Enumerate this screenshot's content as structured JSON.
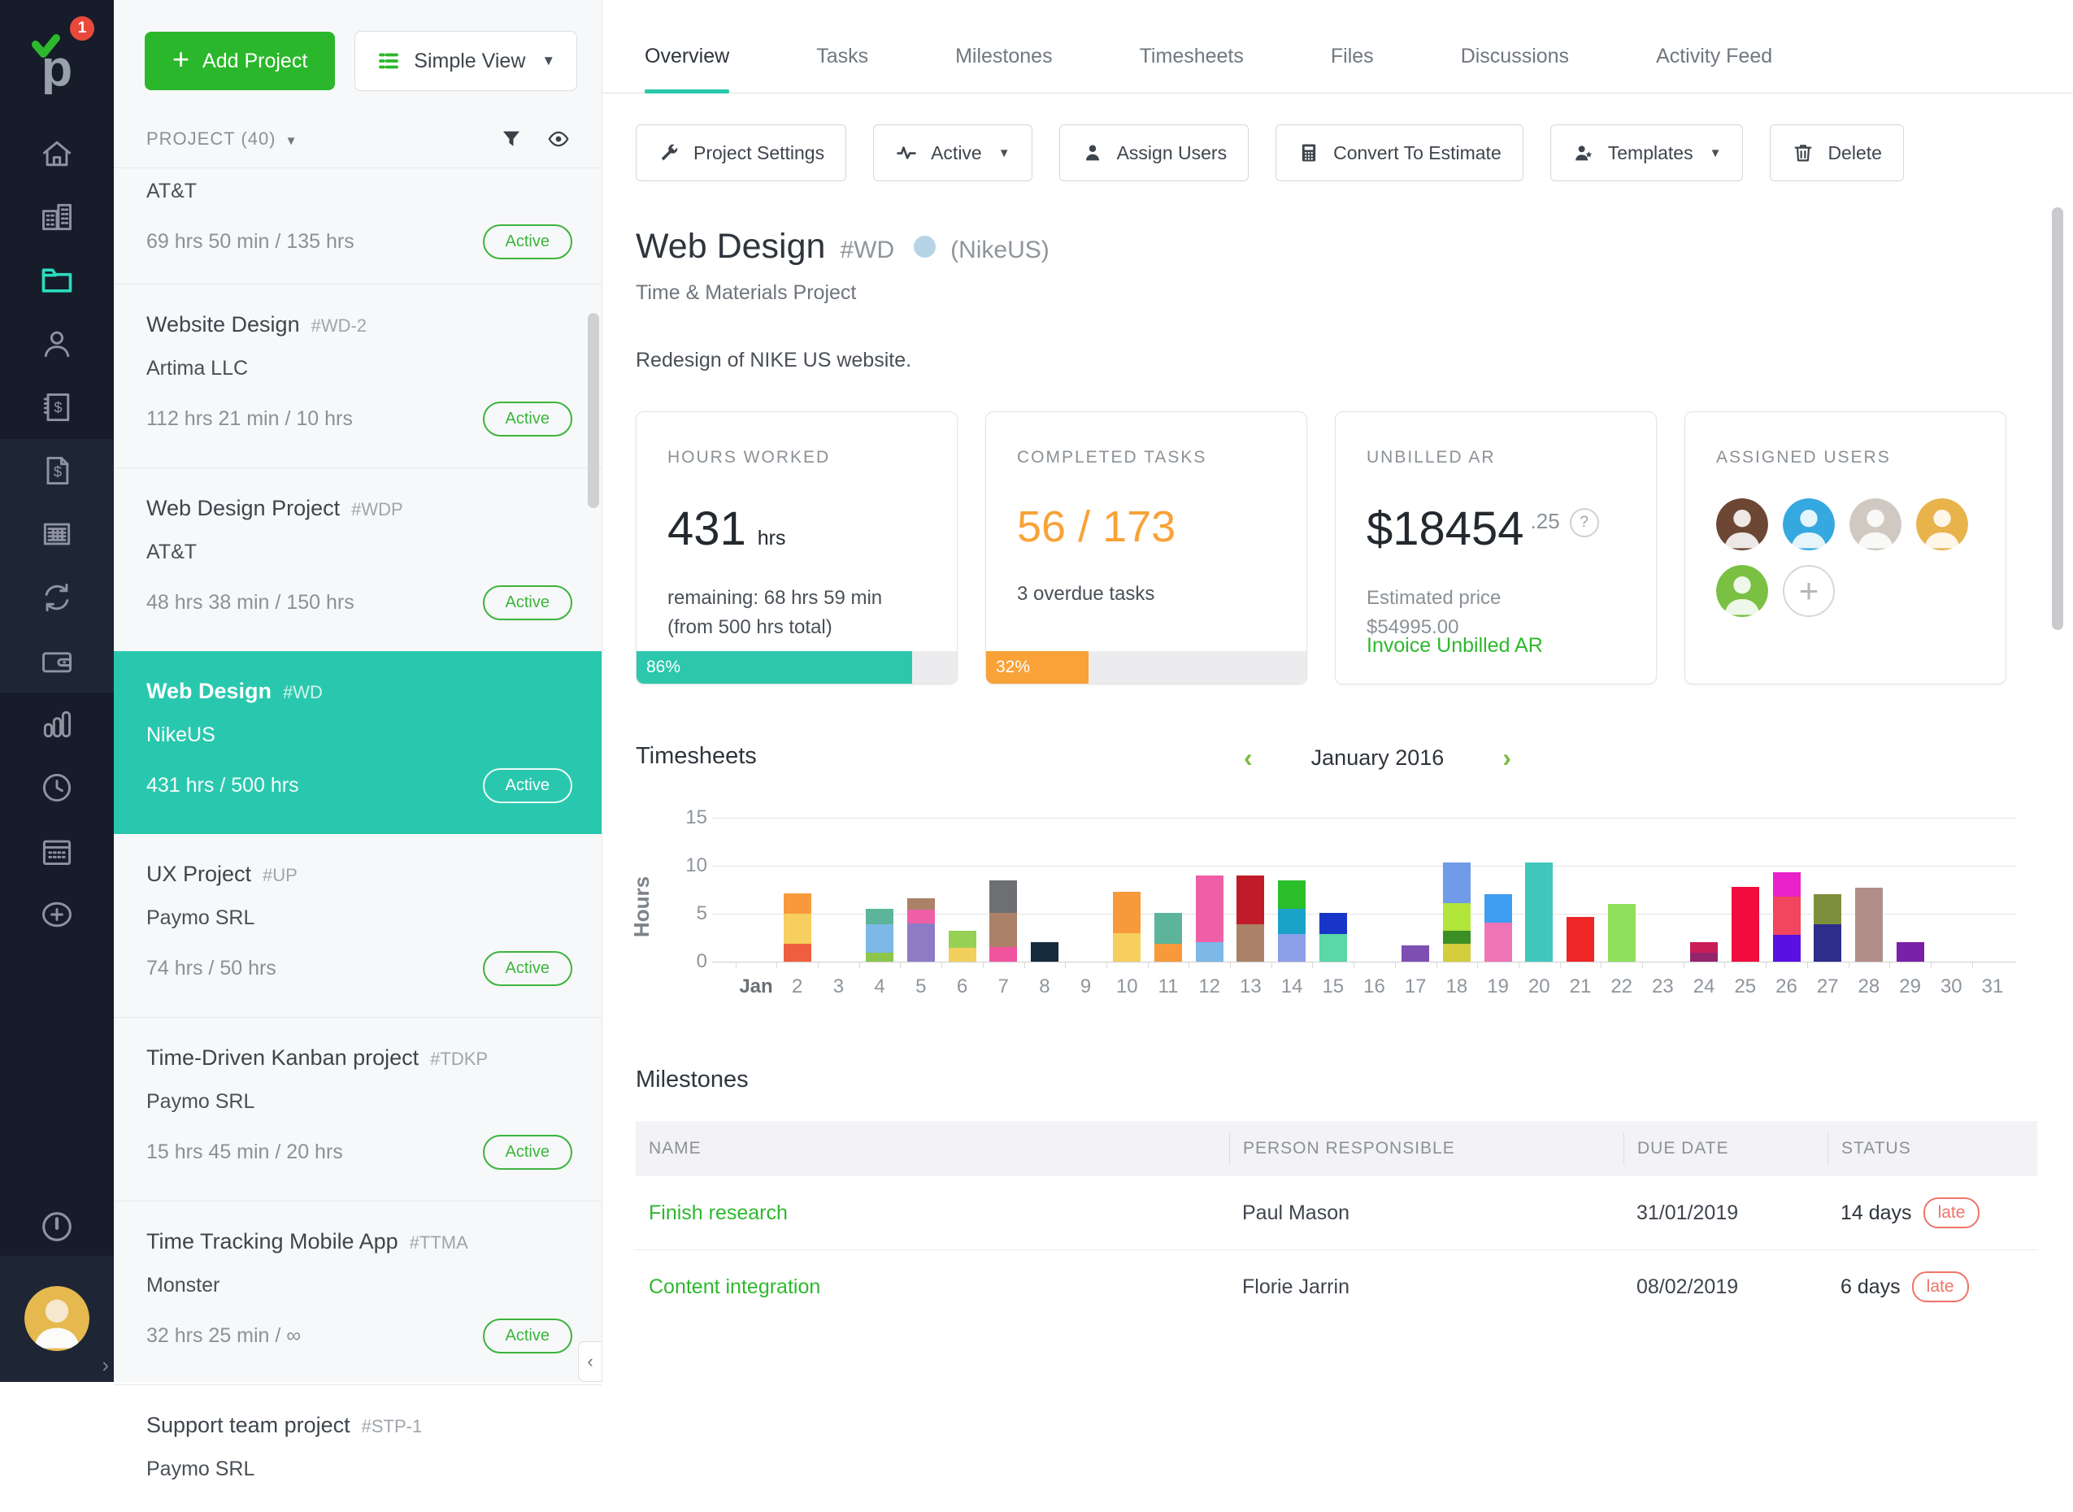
{
  "nav_rail": {
    "badge": "1",
    "items": [
      {
        "icon": "home"
      },
      {
        "icon": "clients"
      },
      {
        "icon": "projects",
        "active": true
      },
      {
        "icon": "users"
      },
      {
        "icon": "invoices"
      },
      {
        "icon": "estimates"
      },
      {
        "icon": "expenses"
      },
      {
        "icon": "recurring"
      },
      {
        "icon": "wallet"
      },
      {
        "icon": "reports"
      },
      {
        "icon": "time"
      },
      {
        "icon": "calendar"
      },
      {
        "icon": "add"
      }
    ],
    "alert_icon": "alert-clock",
    "expand_icon": "chevron-right"
  },
  "project_panel": {
    "add_project_label": "Add Project",
    "view_selector": "Simple View",
    "list_header": "PROJECT (40)",
    "projects": [
      {
        "name": "",
        "code": "",
        "client": "AT&T",
        "hours": "69 hrs 50 min / 135 hrs",
        "status": "Active",
        "clipped": true
      },
      {
        "name": "Website Design",
        "code": "#WD-2",
        "client": "Artima LLC",
        "hours": "112 hrs 21 min / 10 hrs",
        "status": "Active"
      },
      {
        "name": "Web Design Project",
        "code": "#WDP",
        "client": "AT&T",
        "hours": "48 hrs 38 min / 150 hrs",
        "status": "Active"
      },
      {
        "name": "Web Design",
        "code": "#WD",
        "client": "NikeUS",
        "hours": "431 hrs / 500 hrs",
        "status": "Active",
        "selected": true
      },
      {
        "name": "UX Project",
        "code": "#UP",
        "client": "Paymo SRL",
        "hours": "74 hrs / 50 hrs",
        "status": "Active"
      },
      {
        "name": "Time-Driven Kanban project",
        "code": "#TDKP",
        "client": "Paymo SRL",
        "hours": "15 hrs 45 min / 20 hrs",
        "status": "Active"
      },
      {
        "name": "Time Tracking Mobile App",
        "code": "#TTMA",
        "client": "Monster",
        "hours": "32 hrs 25 min / ∞",
        "status": "Active"
      },
      {
        "name": "Support team project",
        "code": "#STP-1",
        "client": "Paymo SRL",
        "hours": "",
        "status": ""
      }
    ]
  },
  "tabs": {
    "active": "Overview",
    "items": [
      "Overview",
      "Tasks",
      "Milestones",
      "Timesheets",
      "Files",
      "Discussions",
      "Activity Feed"
    ]
  },
  "toolbar": [
    {
      "label": "Project Settings",
      "icon": "wrench"
    },
    {
      "label": "Active",
      "icon": "pulse",
      "caret": true
    },
    {
      "label": "Assign Users",
      "icon": "person"
    },
    {
      "label": "Convert To Estimate",
      "icon": "calculator"
    },
    {
      "label": "Templates",
      "icon": "templates",
      "caret": true
    },
    {
      "label": "Delete",
      "icon": "trash"
    }
  ],
  "project_header": {
    "title": "Web Design",
    "code": "#WD",
    "client_paren": "(NikeUS)",
    "type": "Time & Materials Project",
    "description": "Redesign of NIKE US website."
  },
  "cards": {
    "hours_worked": {
      "label": "HOURS WORKED",
      "value": "431",
      "unit": "hrs",
      "line1": "remaining: 68 hrs 59 min",
      "line2": "(from 500 hrs total)",
      "percent": 86,
      "percent_label": "86%",
      "color": "#2cc7ac"
    },
    "completed_tasks": {
      "label": "COMPLETED TASKS",
      "value": "56 / 173",
      "sub": "3 overdue tasks",
      "percent": 32,
      "percent_label": "32%",
      "color": "#f8a237"
    },
    "unbilled_ar": {
      "label": "UNBILLED AR",
      "value": "$18454",
      "decimal": ".25",
      "help": "?",
      "estimated_label": "Estimated price",
      "estimated_value": "$54995.00",
      "link": "Invoice Unbilled AR"
    },
    "assigned_users": {
      "label": "ASSIGNED USERS",
      "avatars": [
        {
          "bg": "#6d4634"
        },
        {
          "bg": "#35a8e0"
        },
        {
          "bg": "#cfc9c2"
        },
        {
          "bg": "#e8b34b"
        },
        {
          "bg": "#79c043"
        }
      ],
      "add_label": "+"
    }
  },
  "timesheets": {
    "heading": "Timesheets",
    "prev": "‹",
    "next": "›",
    "period": "January 2016"
  },
  "chart_data": {
    "type": "bar",
    "stacked": true,
    "ylabel": "Hours",
    "ylim": [
      0,
      15
    ],
    "yticks": [
      0,
      5,
      10,
      15
    ],
    "x_first_label": "Jan",
    "days_in_month": 31,
    "grid": true,
    "bars": [
      {
        "day": 2,
        "segments": [
          {
            "color": "#ef5f3f",
            "hours": 1.9
          },
          {
            "color": "#f6cf5f",
            "hours": 3.1
          },
          {
            "color": "#f89a3b",
            "hours": 2.1
          }
        ]
      },
      {
        "day": 4,
        "segments": [
          {
            "color": "#8bc64a",
            "hours": 0.9
          },
          {
            "color": "#7cb9e8",
            "hours": 3.0
          },
          {
            "color": "#5cb59a",
            "hours": 1.6
          }
        ]
      },
      {
        "day": 5,
        "segments": [
          {
            "color": "#8e7bc6",
            "hours": 4.0
          },
          {
            "color": "#ef5fa7",
            "hours": 1.4
          },
          {
            "color": "#ab8267",
            "hours": 1.2
          }
        ]
      },
      {
        "day": 6,
        "segments": [
          {
            "color": "#f2d05e",
            "hours": 1.4
          },
          {
            "color": "#96d054",
            "hours": 1.8
          }
        ]
      },
      {
        "day": 7,
        "segments": [
          {
            "color": "#f0549e",
            "hours": 1.5
          },
          {
            "color": "#ab8267",
            "hours": 3.6
          },
          {
            "color": "#6e6f72",
            "hours": 3.4
          }
        ]
      },
      {
        "day": 8,
        "segments": [
          {
            "color": "#162b3c",
            "hours": 2.0
          }
        ]
      },
      {
        "day": 10,
        "segments": [
          {
            "color": "#f6cf5f",
            "hours": 3.0
          },
          {
            "color": "#f89a3b",
            "hours": 4.3
          }
        ]
      },
      {
        "day": 11,
        "segments": [
          {
            "color": "#f89a3b",
            "hours": 1.9
          },
          {
            "color": "#5cb59a",
            "hours": 3.2
          }
        ]
      },
      {
        "day": 12,
        "segments": [
          {
            "color": "#7cb9e8",
            "hours": 2.0
          },
          {
            "color": "#ef5fa7",
            "hours": 7.0
          }
        ]
      },
      {
        "day": 13,
        "segments": [
          {
            "color": "#ab8267",
            "hours": 3.9
          },
          {
            "color": "#c11a28",
            "hours": 5.1
          }
        ]
      },
      {
        "day": 14,
        "segments": [
          {
            "color": "#8d9fe9",
            "hours": 2.9
          },
          {
            "color": "#1ba2c8",
            "hours": 2.6
          },
          {
            "color": "#2cbf2c",
            "hours": 3.0
          }
        ]
      },
      {
        "day": 15,
        "segments": [
          {
            "color": "#5ad8a6",
            "hours": 2.9
          },
          {
            "color": "#1736c8",
            "hours": 2.2
          }
        ]
      },
      {
        "day": 17,
        "segments": [
          {
            "color": "#7e4fb3",
            "hours": 1.7
          }
        ]
      },
      {
        "day": 18,
        "segments": [
          {
            "color": "#d4cd3c",
            "hours": 1.9
          },
          {
            "color": "#3c8f25",
            "hours": 1.3
          },
          {
            "color": "#b2e53a",
            "hours": 2.9
          },
          {
            "color": "#6f9be8",
            "hours": 4.2
          }
        ]
      },
      {
        "day": 19,
        "segments": [
          {
            "color": "#ee74b7",
            "hours": 4.1
          },
          {
            "color": "#3f9ef0",
            "hours": 2.9
          }
        ]
      },
      {
        "day": 20,
        "segments": [
          {
            "color": "#42c7bd",
            "hours": 10.3
          }
        ]
      },
      {
        "day": 21,
        "segments": [
          {
            "color": "#ee2626",
            "hours": 4.7
          }
        ]
      },
      {
        "day": 22,
        "segments": [
          {
            "color": "#90e05c",
            "hours": 6.0
          }
        ]
      },
      {
        "day": 24,
        "segments": [
          {
            "color": "#93256c",
            "hours": 0.9
          },
          {
            "color": "#c81e57",
            "hours": 1.1
          }
        ]
      },
      {
        "day": 25,
        "segments": [
          {
            "color": "#f30b3e",
            "hours": 7.8
          }
        ]
      },
      {
        "day": 26,
        "segments": [
          {
            "color": "#5a10e0",
            "hours": 2.8
          },
          {
            "color": "#f2455e",
            "hours": 4.0
          },
          {
            "color": "#e922c9",
            "hours": 2.5
          }
        ]
      },
      {
        "day": 27,
        "segments": [
          {
            "color": "#2e2d8c",
            "hours": 3.9
          },
          {
            "color": "#7e8f3c",
            "hours": 3.1
          }
        ]
      },
      {
        "day": 28,
        "segments": [
          {
            "color": "#b18e8a",
            "hours": 7.7
          }
        ]
      },
      {
        "day": 29,
        "segments": [
          {
            "color": "#7b20a8",
            "hours": 2.0
          }
        ]
      }
    ]
  },
  "milestones": {
    "heading": "Milestones",
    "columns": [
      "NAME",
      "PERSON RESPONSIBLE",
      "DUE DATE",
      "STATUS"
    ],
    "rows": [
      {
        "name": "Finish research",
        "person": "Paul Mason",
        "due": "31/01/2019",
        "days": "14 days",
        "status": "late"
      },
      {
        "name": "Content integration",
        "person": "Florie Jarrin",
        "due": "08/02/2019",
        "days": "6 days",
        "status": "late"
      }
    ]
  }
}
